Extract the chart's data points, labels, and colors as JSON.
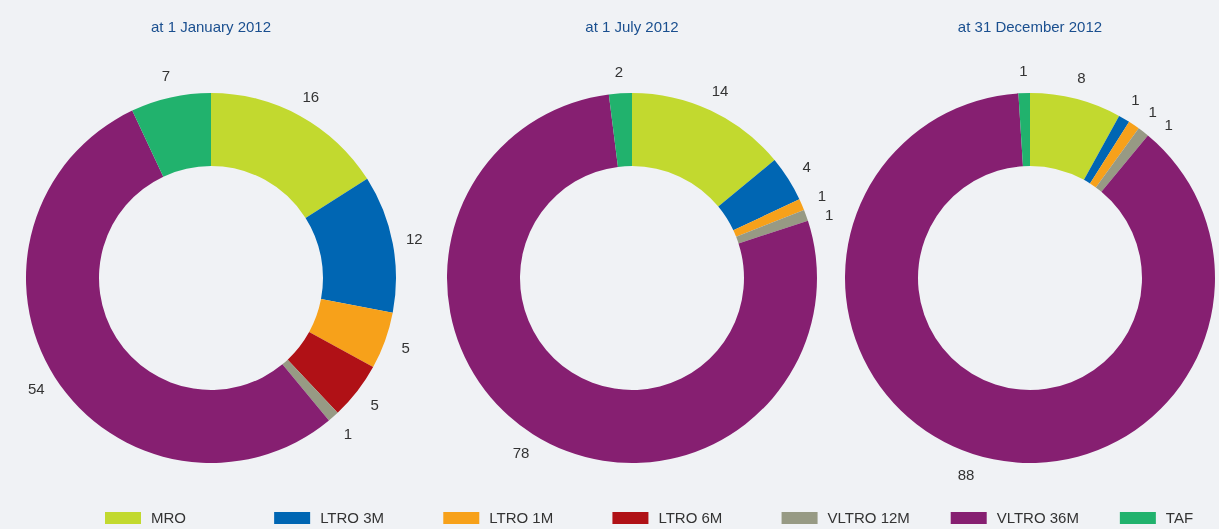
{
  "chart_data": [
    {
      "type": "donut",
      "title": "at 1 January 2012",
      "categories": [
        "MRO",
        "LTRO 3M",
        "LTRO 1M",
        "LTRO 6M",
        "VLTRO 12M",
        "VLTRO 36M",
        "TAF"
      ],
      "values": [
        16,
        12,
        5,
        5,
        1,
        54,
        7
      ],
      "colors": [
        "#c2d92f",
        "#0066b3",
        "#f7a11a",
        "#b01116",
        "#979a84",
        "#861f71",
        "#21b26d"
      ],
      "data_labels": true,
      "legend": "bottom"
    },
    {
      "type": "donut",
      "title": "at 1 July 2012",
      "values": [
        14,
        4,
        1,
        0,
        1,
        78,
        2
      ],
      "colors": [
        "#c2d92f",
        "#0066b3",
        "#f7a11a",
        "#b01116",
        "#979a84",
        "#861f71",
        "#21b26d"
      ],
      "value_labels": [
        "14",
        "4",
        "1",
        null,
        "1",
        "78",
        "2"
      ]
    },
    {
      "type": "donut",
      "title": "at 31 December 2012",
      "values": [
        8,
        1,
        1,
        0,
        1,
        88,
        1
      ],
      "colors": [
        "#c2d92f",
        "#0066b3",
        "#f7a11a",
        "#b01116",
        "#979a84",
        "#861f71",
        "#21b26d"
      ],
      "value_labels": [
        "8",
        "1",
        "1",
        null,
        "1",
        "88",
        "1"
      ]
    }
  ]
}
